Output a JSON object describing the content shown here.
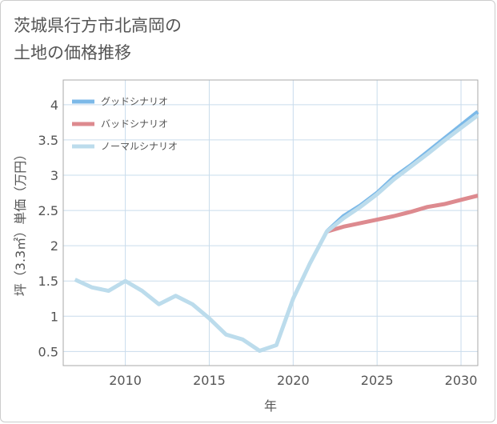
{
  "title_line1": "茨城県行方市北高岡の",
  "title_line2": "土地の価格推移",
  "colors": {
    "good": "#7cb9e8",
    "bad": "#dd8a8f",
    "normal": "#bcdcec",
    "grid": "#c9dcec",
    "frame": "#aaaaaa"
  },
  "chart_data": {
    "type": "line",
    "xlabel": "年",
    "ylabel": "坪（3.3㎡）単価（万円）",
    "xlim": [
      2006.3,
      2031
    ],
    "ylim": [
      0.3,
      4.35
    ],
    "xticks": [
      2010,
      2015,
      2020,
      2025,
      2030
    ],
    "xtick_labels": [
      "2010",
      "2015",
      "2020",
      "2025",
      "2030"
    ],
    "yticks": [
      0.5,
      1,
      1.5,
      2,
      2.5,
      3,
      3.5,
      4
    ],
    "ytick_labels": [
      "0.5",
      "1",
      "1.5",
      "2",
      "2.5",
      "3",
      "3.5",
      "4"
    ],
    "legend_position": "top-left",
    "series": [
      {
        "name": "グッドシナリオ",
        "key": "good",
        "x": [
          2022,
          2023,
          2024,
          2025,
          2026,
          2027,
          2028,
          2029,
          2030,
          2031
        ],
        "y": [
          2.2,
          2.42,
          2.57,
          2.75,
          2.97,
          3.14,
          3.33,
          3.52,
          3.71,
          3.9
        ]
      },
      {
        "name": "バッドシナリオ",
        "key": "bad",
        "x": [
          2022,
          2023,
          2024,
          2025,
          2026,
          2027,
          2028,
          2029,
          2030,
          2031
        ],
        "y": [
          2.2,
          2.27,
          2.32,
          2.37,
          2.42,
          2.48,
          2.55,
          2.59,
          2.65,
          2.71
        ]
      },
      {
        "name": "ノーマルシナリオ",
        "key": "normal",
        "x": [
          2007,
          2008,
          2009,
          2010,
          2011,
          2012,
          2013,
          2014,
          2015,
          2016,
          2017,
          2018,
          2019,
          2020,
          2021,
          2022,
          2023,
          2024,
          2025,
          2026,
          2027,
          2028,
          2029,
          2030,
          2031
        ],
        "y": [
          1.52,
          1.41,
          1.36,
          1.5,
          1.36,
          1.17,
          1.29,
          1.17,
          0.97,
          0.74,
          0.67,
          0.51,
          0.59,
          1.25,
          1.75,
          2.2,
          2.39,
          2.55,
          2.73,
          2.94,
          3.12,
          3.3,
          3.49,
          3.67,
          3.85
        ]
      }
    ]
  }
}
